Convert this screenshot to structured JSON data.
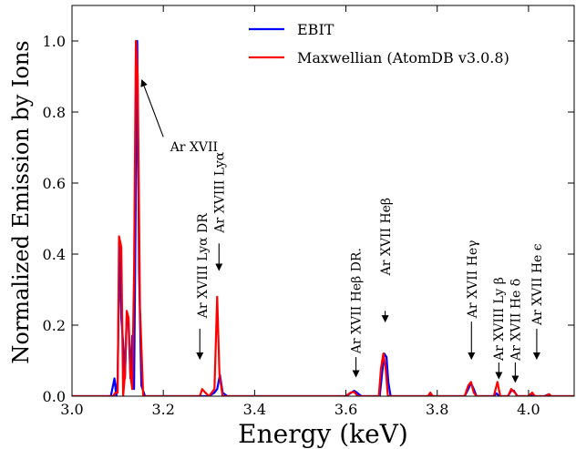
{
  "chart_data": {
    "type": "line",
    "title": "",
    "xlabel": "Energy (keV)",
    "ylabel": "Normalized Emission by Ions",
    "xlim": [
      3.0,
      4.1
    ],
    "ylim": [
      0.0,
      1.1
    ],
    "x_ticks": [
      "3.0",
      "3.2",
      "3.4",
      "3.6",
      "3.8",
      "4.0"
    ],
    "y_ticks": [
      "0.0",
      "0.2",
      "0.4",
      "0.6",
      "0.8",
      "1.0"
    ],
    "grid": false,
    "legend": "top-center",
    "series": [
      {
        "name": "EBIT",
        "color": "#0000ff",
        "points": [
          [
            3.0,
            0.0
          ],
          [
            3.085,
            0.0
          ],
          [
            3.093,
            0.05
          ],
          [
            3.097,
            0.0
          ],
          [
            3.1,
            0.05
          ],
          [
            3.104,
            0.44
          ],
          [
            3.108,
            0.22
          ],
          [
            3.112,
            0.15
          ],
          [
            3.116,
            0.05
          ],
          [
            3.12,
            0.23
          ],
          [
            3.124,
            0.2
          ],
          [
            3.128,
            0.05
          ],
          [
            3.132,
            0.17
          ],
          [
            3.136,
            0.02
          ],
          [
            3.14,
            0.6
          ],
          [
            3.143,
            1.0
          ],
          [
            3.147,
            0.35
          ],
          [
            3.152,
            0.03
          ],
          [
            3.16,
            0.0
          ],
          [
            3.3,
            0.0
          ],
          [
            3.312,
            0.01
          ],
          [
            3.318,
            0.02
          ],
          [
            3.324,
            0.06
          ],
          [
            3.33,
            0.01
          ],
          [
            3.34,
            0.0
          ],
          [
            3.6,
            0.0
          ],
          [
            3.612,
            0.01
          ],
          [
            3.618,
            0.015
          ],
          [
            3.624,
            0.01
          ],
          [
            3.634,
            0.0
          ],
          [
            3.674,
            0.0
          ],
          [
            3.679,
            0.06
          ],
          [
            3.684,
            0.12
          ],
          [
            3.689,
            0.11
          ],
          [
            3.693,
            0.04
          ],
          [
            3.698,
            0.0
          ],
          [
            3.78,
            0.0
          ],
          [
            3.784,
            0.008
          ],
          [
            3.788,
            0.0
          ],
          [
            3.86,
            0.0
          ],
          [
            3.868,
            0.02
          ],
          [
            3.874,
            0.037
          ],
          [
            3.88,
            0.02
          ],
          [
            3.886,
            0.0
          ],
          [
            3.924,
            0.0
          ],
          [
            3.93,
            0.008
          ],
          [
            3.936,
            0.0
          ],
          [
            3.955,
            0.0
          ],
          [
            3.962,
            0.015
          ],
          [
            3.968,
            0.015
          ],
          [
            3.975,
            0.0
          ],
          [
            4.0,
            0.0
          ],
          [
            4.004,
            0.005
          ],
          [
            4.01,
            0.0
          ],
          [
            4.035,
            0.0
          ],
          [
            4.042,
            0.004
          ],
          [
            4.048,
            0.0
          ],
          [
            4.1,
            0.0
          ]
        ]
      },
      {
        "name": "Maxwellian (AtomDB v3.0.8)",
        "color": "#ff0000",
        "points": [
          [
            3.0,
            0.0
          ],
          [
            3.09,
            0.0
          ],
          [
            3.095,
            0.01
          ],
          [
            3.1,
            0.01
          ],
          [
            3.103,
            0.45
          ],
          [
            3.108,
            0.42
          ],
          [
            3.112,
            0.0
          ],
          [
            3.116,
            0.06
          ],
          [
            3.12,
            0.24
          ],
          [
            3.124,
            0.22
          ],
          [
            3.128,
            0.06
          ],
          [
            3.132,
            0.02
          ],
          [
            3.136,
            0.35
          ],
          [
            3.14,
            1.0
          ],
          [
            3.144,
            0.9
          ],
          [
            3.149,
            0.25
          ],
          [
            3.156,
            0.0
          ],
          [
            3.28,
            0.0
          ],
          [
            3.285,
            0.02
          ],
          [
            3.292,
            0.01
          ],
          [
            3.3,
            0.0
          ],
          [
            3.312,
            0.02
          ],
          [
            3.318,
            0.28
          ],
          [
            3.323,
            0.06
          ],
          [
            3.33,
            0.0
          ],
          [
            3.6,
            0.0
          ],
          [
            3.61,
            0.01
          ],
          [
            3.618,
            0.012
          ],
          [
            3.626,
            0.0
          ],
          [
            3.672,
            0.0
          ],
          [
            3.677,
            0.08
          ],
          [
            3.682,
            0.12
          ],
          [
            3.687,
            0.08
          ],
          [
            3.692,
            0.0
          ],
          [
            3.78,
            0.0
          ],
          [
            3.785,
            0.01
          ],
          [
            3.79,
            0.0
          ],
          [
            3.86,
            0.0
          ],
          [
            3.868,
            0.03
          ],
          [
            3.874,
            0.04
          ],
          [
            3.88,
            0.01
          ],
          [
            3.886,
            0.0
          ],
          [
            3.924,
            0.0
          ],
          [
            3.932,
            0.04
          ],
          [
            3.938,
            0.0
          ],
          [
            3.955,
            0.0
          ],
          [
            3.962,
            0.02
          ],
          [
            3.97,
            0.01
          ],
          [
            3.976,
            0.0
          ],
          [
            4.0,
            0.0
          ],
          [
            4.008,
            0.01
          ],
          [
            4.014,
            0.0
          ],
          [
            4.038,
            0.0
          ],
          [
            4.045,
            0.006
          ],
          [
            4.05,
            0.0
          ],
          [
            4.1,
            0.0
          ]
        ]
      }
    ],
    "annotations": [
      {
        "text": "Ar XVII",
        "rotated": false,
        "text_x": 3.215,
        "text_y": 0.69,
        "arrow_from": [
          3.2,
          0.73
        ],
        "arrow_to": [
          3.153,
          0.89
        ]
      },
      {
        "text": "Ar XVIII Lyα DR",
        "rotated": true,
        "text_x": 3.295,
        "text_y": 0.22,
        "arrow_from": [
          3.28,
          0.19
        ],
        "arrow_to": [
          3.28,
          0.105
        ]
      },
      {
        "text": "Ar XVIII Lyα",
        "rotated": true,
        "text_x": 3.332,
        "text_y": 0.46,
        "arrow_from": [
          3.322,
          0.43
        ],
        "arrow_to": [
          3.322,
          0.355
        ]
      },
      {
        "text": "Ar XVII  Heβ DR.",
        "rotated": true,
        "text_x": 3.632,
        "text_y": 0.12,
        "arrow_from": [
          3.622,
          0.11
        ],
        "arrow_to": [
          3.622,
          0.055
        ]
      },
      {
        "text": "Ar XVII Heβ",
        "rotated": true,
        "text_x": 3.697,
        "text_y": 0.34,
        "arrow_from": [
          3.686,
          0.24
        ],
        "arrow_to": [
          3.686,
          0.21
        ]
      },
      {
        "text": "Ar XVII Heγ",
        "rotated": true,
        "text_x": 3.886,
        "text_y": 0.22,
        "arrow_from": [
          3.875,
          0.21
        ],
        "arrow_to": [
          3.875,
          0.105
        ]
      },
      {
        "text": "Ar XVIII Ly β",
        "rotated": true,
        "text_x": 3.944,
        "text_y": 0.1,
        "arrow_from": [
          3.935,
          0.095
        ],
        "arrow_to": [
          3.935,
          0.05
        ]
      },
      {
        "text": "Ar XVII He δ",
        "rotated": true,
        "text_x": 3.981,
        "text_y": 0.1,
        "arrow_from": [
          3.971,
          0.095
        ],
        "arrow_to": [
          3.971,
          0.04
        ]
      },
      {
        "text": "Ar XVII He ϵ",
        "rotated": true,
        "text_x": 4.028,
        "text_y": 0.2,
        "arrow_from": [
          4.018,
          0.19
        ],
        "arrow_to": [
          4.018,
          0.105
        ]
      }
    ]
  }
}
